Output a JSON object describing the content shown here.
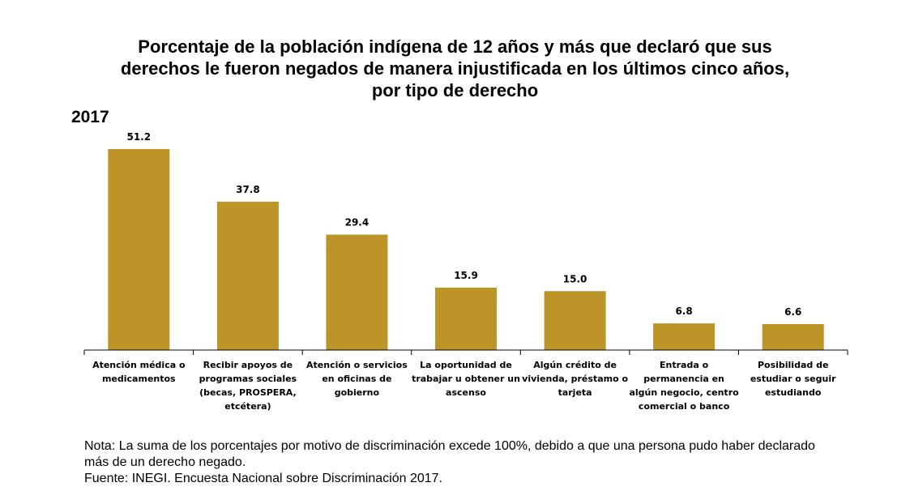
{
  "title_lines": [
    "Porcentaje de la población indígena de 12 años y más que declaró que sus",
    "derechos le fueron negados de manera injustificada en los últimos cinco años,",
    "por tipo de derecho"
  ],
  "year_label": "2017",
  "chart_data": {
    "type": "bar",
    "categories": [
      "Atención médica o medicamentos",
      "Recibir apoyos de programas sociales (becas, PROSPERA, etcétera)",
      "Atención o servicios en oficinas de gobierno",
      "La oportunidad de trabajar u obtener un ascenso",
      "Algún crédito de vivienda, préstamo o tarjeta",
      "Entrada o permanencia en algún negocio, centro comercial o banco",
      "Posibilidad de estudiar o seguir estudiando"
    ],
    "values": [
      51.2,
      37.8,
      29.4,
      15.9,
      15.0,
      6.8,
      6.6
    ],
    "value_labels": [
      "51.2",
      "37.8",
      "29.4",
      "15.9",
      "15.0",
      "6.8",
      "6.6"
    ],
    "title": "Porcentaje de la población indígena de 12 años y más que declaró que sus derechos le fueron negados de manera injustificada en los últimos cinco años, por tipo de derecho",
    "xlabel": "",
    "ylabel": "",
    "ylim": [
      0,
      60
    ],
    "grid": false,
    "legend": "none",
    "bar_color": "#BC9428"
  },
  "notes": {
    "nota": "Nota: La suma de los porcentajes por motivo de discriminación excede 100%, debido a que una persona pudo haber declarado más de un derecho negado.",
    "fuente": "Fuente: INEGI. Encuesta Nacional sobre Discriminación 2017."
  }
}
